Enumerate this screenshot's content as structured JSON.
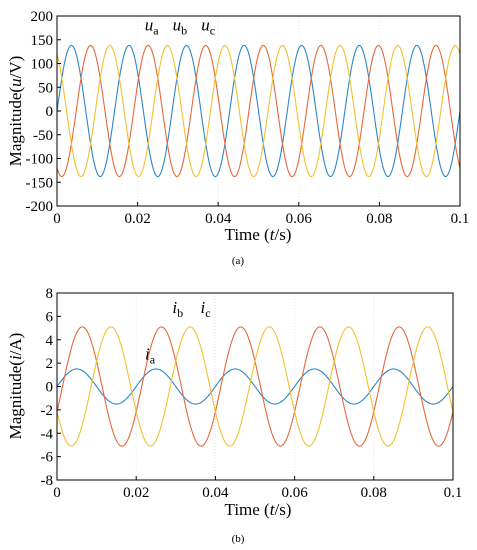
{
  "chart_data": [
    {
      "type": "line",
      "panel_label": "(a)",
      "xlabel_pre": "Time (",
      "xlabel_var": "t",
      "xlabel_post": "/s)",
      "ylabel_pre": "Magnitude(",
      "ylabel_var": "u",
      "ylabel_post": "/V)",
      "xlim": [
        0,
        0.1
      ],
      "ylim": [
        -200,
        200
      ],
      "xticks": [
        "0",
        "0.02",
        "0.04",
        "0.06",
        "0.08",
        "0.1"
      ],
      "yticks": [
        "200",
        "150",
        "100",
        "50",
        "0",
        "-50",
        "-100",
        "-150",
        "-200"
      ],
      "series": [
        {
          "name": "ua",
          "amplitude": 138,
          "frequency_hz": 70,
          "phase_deg": 0,
          "color": "#2E86C8"
        },
        {
          "name": "ub",
          "amplitude": 138,
          "frequency_hz": 70,
          "phase_deg": -120,
          "color": "#E8673C"
        },
        {
          "name": "uc",
          "amplitude": 138,
          "frequency_hz": 70,
          "phase_deg": 120,
          "color": "#F2C12E"
        }
      ],
      "annotations": [
        {
          "base": "u",
          "sub": "a",
          "x": 0.0235,
          "y": 170
        },
        {
          "base": "u",
          "sub": "b",
          "x": 0.0305,
          "y": 170
        },
        {
          "base": "u",
          "sub": "c",
          "x": 0.0375,
          "y": 170
        }
      ]
    },
    {
      "type": "line",
      "panel_label": "(b)",
      "xlabel_pre": "Time (",
      "xlabel_var": "t",
      "xlabel_post": "/s)",
      "ylabel_pre": "Magnitude(",
      "ylabel_var": "i",
      "ylabel_post": "/A)",
      "xlim": [
        0,
        0.1
      ],
      "ylim": [
        -8,
        8
      ],
      "xticks": [
        "0",
        "0.02",
        "0.04",
        "0.06",
        "0.08",
        "0.1"
      ],
      "yticks": [
        "8",
        "6",
        "4",
        "2",
        "0",
        "-2",
        "-4",
        "-6",
        "-8"
      ],
      "series": [
        {
          "name": "ia",
          "amplitude": 1.5,
          "frequency_hz": 50,
          "phase_deg": 0,
          "color": "#2E86C8"
        },
        {
          "name": "ib",
          "amplitude": 5.1,
          "frequency_hz": 50,
          "phase_deg": -25,
          "color": "#E8673C"
        },
        {
          "name": "ic",
          "amplitude": 5.1,
          "frequency_hz": 50,
          "phase_deg": 205,
          "color": "#F2C12E"
        }
      ],
      "annotations": [
        {
          "base": "i",
          "sub": "a",
          "x": 0.0235,
          "y": 2.3
        },
        {
          "base": "i",
          "sub": "b",
          "x": 0.0305,
          "y": 6.3
        },
        {
          "base": "i",
          "sub": "c",
          "x": 0.0375,
          "y": 6.3
        }
      ]
    }
  ]
}
